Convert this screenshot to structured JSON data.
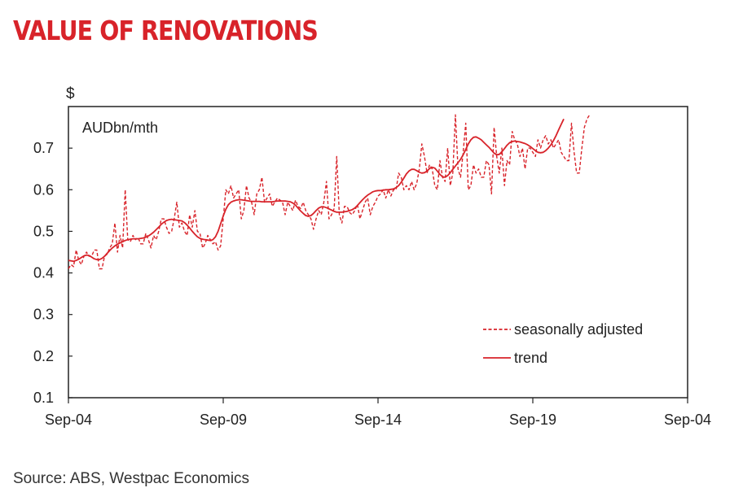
{
  "title": "VALUE OF RENOVATIONS",
  "source": "Source: ABS, Westpac Economics",
  "chart_data": {
    "type": "line",
    "y_unit_label": "$",
    "series_unit_label": "AUDbn/mth",
    "ylim": [
      0.1,
      0.8
    ],
    "y_ticks": [
      "0.1",
      "0.2",
      "0.3",
      "0.4",
      "0.5",
      "0.6",
      "0.7"
    ],
    "x_ticks": [
      "Sep-04",
      "Sep-09",
      "Sep-14",
      "Sep-19",
      "Sep-04"
    ],
    "xlim_months": [
      0,
      240
    ],
    "legend_position": "bottom-right",
    "grid": false,
    "colors": {
      "series": "#d8232a",
      "title": "#d8232a"
    },
    "series": [
      {
        "name": "seasonally adjusted",
        "style": "dashed",
        "x_start": "Sep-04",
        "frequency": "monthly",
        "values": [
          0.41,
          0.42,
          0.415,
          0.455,
          0.43,
          0.42,
          0.44,
          0.45,
          0.44,
          0.44,
          0.455,
          0.455,
          0.41,
          0.41,
          0.44,
          0.445,
          0.46,
          0.47,
          0.52,
          0.45,
          0.49,
          0.46,
          0.6,
          0.48,
          0.475,
          0.49,
          0.48,
          0.485,
          0.47,
          0.47,
          0.495,
          0.48,
          0.46,
          0.49,
          0.48,
          0.5,
          0.53,
          0.53,
          0.51,
          0.495,
          0.5,
          0.53,
          0.57,
          0.51,
          0.52,
          0.5,
          0.49,
          0.54,
          0.51,
          0.55,
          0.5,
          0.495,
          0.46,
          0.47,
          0.49,
          0.48,
          0.47,
          0.475,
          0.455,
          0.465,
          0.53,
          0.6,
          0.59,
          0.61,
          0.58,
          0.59,
          0.6,
          0.53,
          0.55,
          0.61,
          0.58,
          0.57,
          0.54,
          0.59,
          0.6,
          0.63,
          0.57,
          0.58,
          0.59,
          0.56,
          0.57,
          0.58,
          0.575,
          0.57,
          0.54,
          0.57,
          0.56,
          0.55,
          0.575,
          0.56,
          0.555,
          0.57,
          0.55,
          0.54,
          0.53,
          0.505,
          0.53,
          0.55,
          0.54,
          0.57,
          0.62,
          0.53,
          0.54,
          0.555,
          0.68,
          0.54,
          0.52,
          0.56,
          0.56,
          0.545,
          0.54,
          0.55,
          0.565,
          0.53,
          0.55,
          0.57,
          0.58,
          0.54,
          0.56,
          0.57,
          0.585,
          0.59,
          0.6,
          0.58,
          0.6,
          0.585,
          0.6,
          0.6,
          0.64,
          0.63,
          0.6,
          0.61,
          0.6,
          0.62,
          0.6,
          0.615,
          0.65,
          0.71,
          0.68,
          0.64,
          0.66,
          0.65,
          0.61,
          0.6,
          0.67,
          0.63,
          0.62,
          0.7,
          0.61,
          0.64,
          0.78,
          0.65,
          0.63,
          0.69,
          0.76,
          0.6,
          0.61,
          0.66,
          0.64,
          0.65,
          0.63,
          0.63,
          0.67,
          0.66,
          0.59,
          0.75,
          0.68,
          0.64,
          0.7,
          0.61,
          0.67,
          0.66,
          0.74,
          0.72,
          0.71,
          0.68,
          0.7,
          0.65,
          0.7,
          0.7,
          0.69,
          0.68,
          0.72,
          0.7,
          0.72,
          0.73,
          0.71,
          0.72,
          0.7,
          0.71,
          0.72,
          0.69,
          0.68,
          0.67,
          0.67,
          0.76,
          0.69,
          0.64,
          0.64,
          0.7,
          0.75,
          0.77,
          0.78
        ]
      },
      {
        "name": "trend",
        "style": "solid",
        "x_start": "Sep-04",
        "frequency": "monthly",
        "values": [
          0.43,
          0.429,
          0.428,
          0.43,
          0.433,
          0.437,
          0.441,
          0.443,
          0.442,
          0.438,
          0.434,
          0.432,
          0.432,
          0.435,
          0.44,
          0.447,
          0.454,
          0.46,
          0.465,
          0.469,
          0.472,
          0.475,
          0.478,
          0.48,
          0.481,
          0.482,
          0.482,
          0.482,
          0.483,
          0.484,
          0.486,
          0.489,
          0.493,
          0.498,
          0.504,
          0.51,
          0.517,
          0.522,
          0.526,
          0.528,
          0.529,
          0.528,
          0.527,
          0.526,
          0.525,
          0.521,
          0.515,
          0.508,
          0.5,
          0.493,
          0.487,
          0.483,
          0.481,
          0.48,
          0.479,
          0.478,
          0.48,
          0.487,
          0.5,
          0.518,
          0.537,
          0.553,
          0.564,
          0.57,
          0.573,
          0.575,
          0.576,
          0.576,
          0.575,
          0.574,
          0.573,
          0.572,
          0.572,
          0.572,
          0.572,
          0.571,
          0.571,
          0.571,
          0.571,
          0.571,
          0.572,
          0.573,
          0.573,
          0.573,
          0.573,
          0.572,
          0.571,
          0.568,
          0.563,
          0.556,
          0.549,
          0.543,
          0.538,
          0.536,
          0.538,
          0.543,
          0.55,
          0.556,
          0.559,
          0.559,
          0.557,
          0.554,
          0.551,
          0.548,
          0.546,
          0.546,
          0.546,
          0.547,
          0.548,
          0.55,
          0.552,
          0.556,
          0.562,
          0.569,
          0.576,
          0.582,
          0.587,
          0.591,
          0.595,
          0.597,
          0.598,
          0.598,
          0.599,
          0.6,
          0.6,
          0.601,
          0.602,
          0.605,
          0.61,
          0.618,
          0.628,
          0.638,
          0.645,
          0.649,
          0.649,
          0.646,
          0.642,
          0.64,
          0.641,
          0.645,
          0.651,
          0.654,
          0.652,
          0.645,
          0.637,
          0.631,
          0.63,
          0.634,
          0.641,
          0.649,
          0.657,
          0.665,
          0.673,
          0.684,
          0.697,
          0.71,
          0.72,
          0.726,
          0.727,
          0.724,
          0.72,
          0.714,
          0.708,
          0.702,
          0.695,
          0.688,
          0.684,
          0.685,
          0.691,
          0.699,
          0.707,
          0.713,
          0.716,
          0.717,
          0.716,
          0.715,
          0.713,
          0.711,
          0.708,
          0.704,
          0.699,
          0.694,
          0.69,
          0.689,
          0.69,
          0.694,
          0.7,
          0.708,
          0.718,
          0.73,
          0.744,
          0.757,
          0.77
        ]
      }
    ]
  }
}
